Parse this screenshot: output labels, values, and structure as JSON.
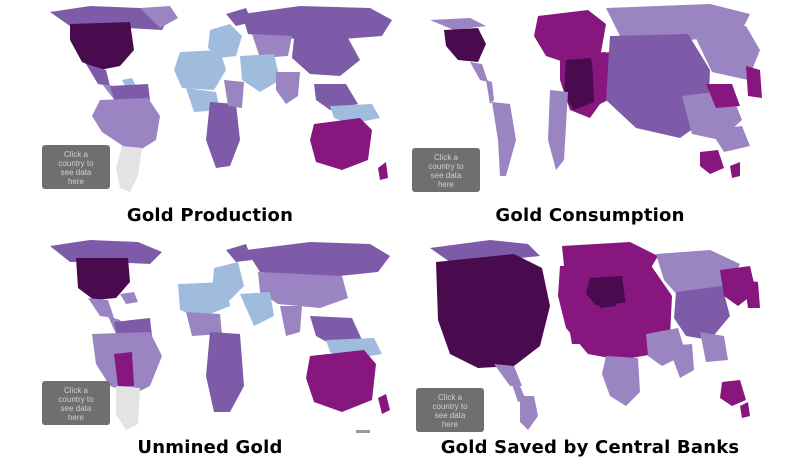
{
  "maps": [
    {
      "id": "production",
      "caption": "Gold Production",
      "tip": "Click a country to see data here"
    },
    {
      "id": "consumption",
      "caption": "Gold Consumption",
      "tip": "Click a country to see data here"
    },
    {
      "id": "unmined",
      "caption": "Unmined Gold",
      "tip": "Click a country to see data here"
    },
    {
      "id": "central",
      "caption": "Gold Saved by Central Banks",
      "tip": "Click a country to see data here"
    }
  ],
  "colors": {
    "darkest": "#4a0a4e",
    "dark": "#87167e",
    "mid": "#7d5ba8",
    "light": "#9a84c2",
    "pale_blue": "#9fbbdd",
    "grey": "#e3e3e3"
  }
}
